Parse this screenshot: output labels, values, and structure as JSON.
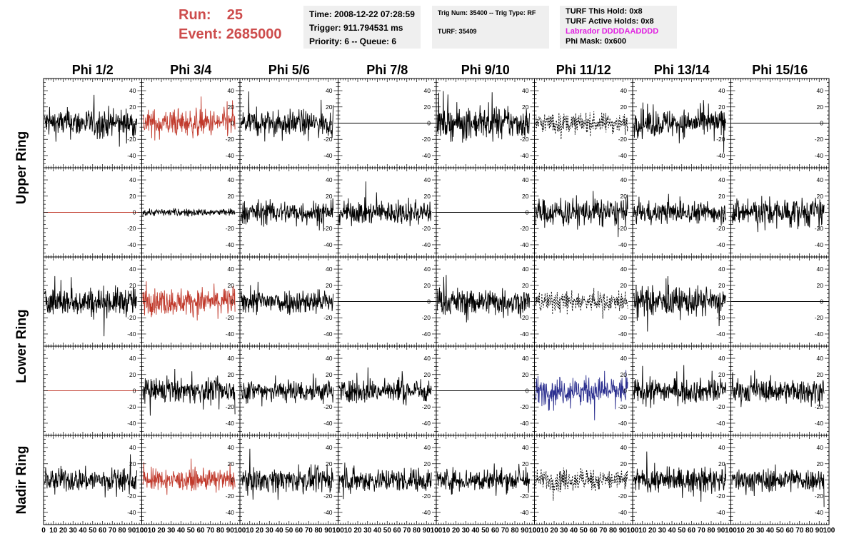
{
  "header": {
    "run_label": "Run:",
    "run_value": "25",
    "event_label": "Event:",
    "event_value": "2685000",
    "time": "Time: 2008-12-22 07:28:59",
    "trigger": "Trigger: 911.794531 ms",
    "priority": "Priority: 6 -- Queue: 6",
    "trig_num": "Trig Num: 35400 -- Trig Type: RF",
    "turf": "TURF: 35409",
    "turf_hold": "TURF This Hold: 0x8",
    "turf_active": "TURF Active Holds: 0x8",
    "labrador": "Labrador DDDDAADDDD",
    "phi_mask": "Phi Mask: 0x600",
    "labrador_color": "#e020e0",
    "run_color": "#cd4c4c"
  },
  "chart_data": {
    "type": "line",
    "columns": [
      "Phi 1/2",
      "Phi 3/4",
      "Phi 5/6",
      "Phi 7/8",
      "Phi 9/10",
      "Phi 11/12",
      "Phi 13/14",
      "Phi 15/16"
    ],
    "ring_labels": [
      {
        "label": "Upper Ring",
        "rows": [
          0,
          1
        ]
      },
      {
        "label": "Lower Ring",
        "rows": [
          2,
          3
        ]
      },
      {
        "label": "Nadir Ring",
        "rows": [
          4
        ]
      }
    ],
    "y_ticks": [
      40,
      20,
      0,
      -20,
      -40
    ],
    "ylim": [
      -55,
      55
    ],
    "x_ticks": [
      0,
      10,
      20,
      30,
      40,
      50,
      60,
      70,
      80,
      90,
      100
    ],
    "xlim": [
      0,
      100
    ],
    "styles": {
      "normal": "#000000",
      "red": "#c0392b",
      "blue": "#2b2f8f"
    },
    "panels": [
      [
        "noisy:16",
        "red:15",
        "noisy:14",
        "flat",
        "noisy:17",
        "dashed:11",
        "noisy:15",
        "flat"
      ],
      [
        "flatred",
        "small:4",
        "noisy:13",
        "noisy:13",
        "flat",
        "noisy:15",
        "noisy:12",
        "noisy:16"
      ],
      [
        "noisy:16",
        "red:15",
        "noisy:14",
        "flat",
        "noisy:15",
        "dashed:11",
        "noisy:16",
        "flat"
      ],
      [
        "flatred",
        "noisy:13",
        "noisy:13",
        "noisy:13",
        "flat",
        "blue:15",
        "noisy:13",
        "noisy:13"
      ],
      [
        "noisy:13",
        "red:11",
        "noisy:13",
        "noisy:13",
        "noisy:13",
        "dashed:12",
        "noisy:13",
        "noisy:13"
      ]
    ]
  }
}
